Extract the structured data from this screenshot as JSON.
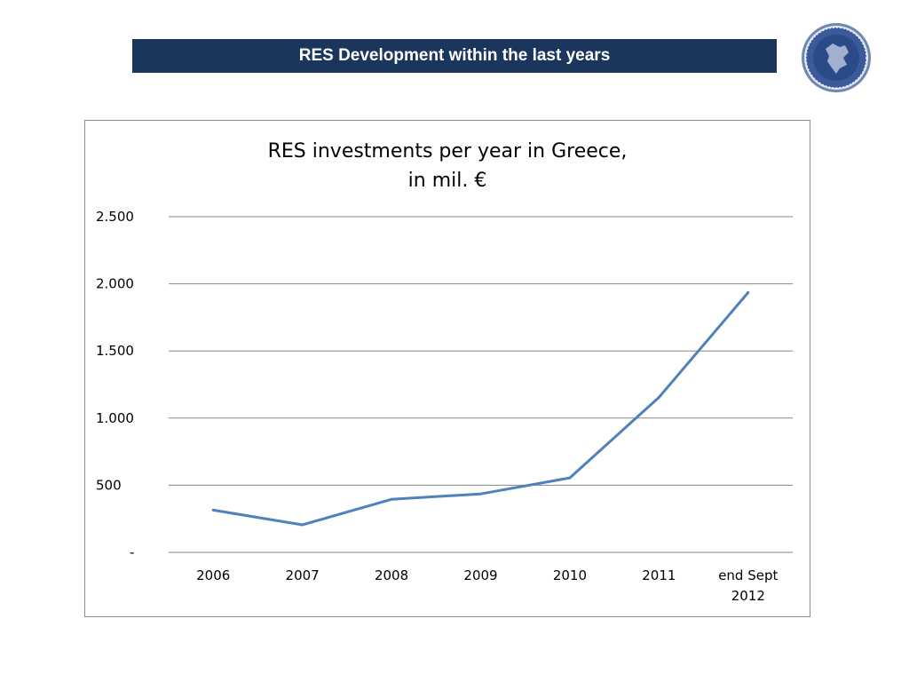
{
  "header": {
    "title": "RES Development within the last years",
    "logo_icon": "greek-emblem-seal-icon",
    "colors": {
      "bar": "#1b365d",
      "text": "#ffffff"
    }
  },
  "chart_data": {
    "type": "line",
    "title": "RES investments per year in Greece,",
    "subtitle": "in mil. €",
    "categories": [
      "2006",
      "2007",
      "2008",
      "2009",
      "2010",
      "2011",
      "end Sept 2012"
    ],
    "category_lines": [
      [
        "2006"
      ],
      [
        "2007"
      ],
      [
        "2008"
      ],
      [
        "2009"
      ],
      [
        "2010"
      ],
      [
        "2011"
      ],
      [
        "end Sept",
        "2012"
      ]
    ],
    "series": [
      {
        "values": [
          315,
          205,
          395,
          435,
          555,
          1155,
          1935
        ],
        "color": "#4f81bd"
      }
    ],
    "ylim": [
      0,
      2500
    ],
    "yticks": [
      0,
      500,
      1000,
      1500,
      2000,
      2500
    ],
    "ytick_labels": [
      "-",
      "500",
      "1.000",
      "1.500",
      "2.000",
      "2.500"
    ],
    "grid": true,
    "xlabel": "",
    "ylabel": ""
  }
}
